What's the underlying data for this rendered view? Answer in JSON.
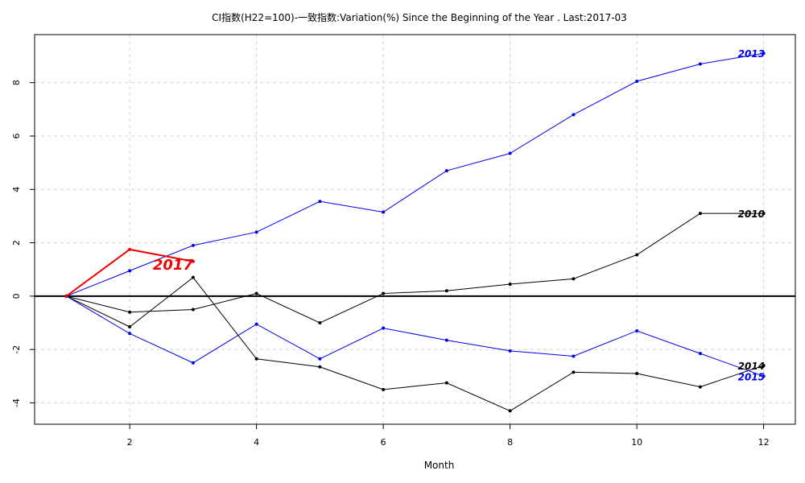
{
  "chart_data": {
    "type": "line",
    "title": "CI指数(H22=100)-一致指数:Variation(%) Since the Beginning of the Year . Last:2017-03",
    "xlabel": "Month",
    "ylabel": "",
    "xlim": [
      0.5,
      12.5
    ],
    "ylim": [
      -4.8,
      9.8
    ],
    "xticks": [
      2,
      4,
      6,
      8,
      10,
      12
    ],
    "yticks": [
      -4,
      -2,
      0,
      2,
      4,
      6,
      8
    ],
    "grid": true,
    "reference_line_y": 0,
    "series": [
      {
        "name": "2013",
        "color": "#0000ee",
        "label_color": "#0000ee",
        "x": [
          1,
          2,
          3,
          4,
          5,
          6,
          7,
          8,
          9,
          10,
          11,
          12
        ],
        "values": [
          0,
          0.95,
          1.9,
          2.4,
          3.55,
          3.15,
          4.7,
          5.35,
          6.8,
          8.05,
          8.7,
          9.1
        ]
      },
      {
        "name": "2010",
        "color": "#000000",
        "label_color": "#000000",
        "x": [
          1,
          2,
          3,
          4,
          5,
          6,
          7,
          8,
          9,
          10,
          11,
          12
        ],
        "values": [
          0,
          -0.6,
          -0.5,
          0.1,
          -1.0,
          0.1,
          0.2,
          0.45,
          0.65,
          1.55,
          3.1,
          3.1
        ]
      },
      {
        "name": "2014",
        "color": "#000000",
        "label_color": "#000000",
        "x": [
          1,
          2,
          3,
          4,
          5,
          6,
          7,
          8,
          9,
          10,
          11,
          12
        ],
        "values": [
          0,
          -1.15,
          0.7,
          -2.35,
          -2.65,
          -3.5,
          -3.25,
          -4.3,
          -2.85,
          -2.9,
          -3.4,
          -2.6
        ]
      },
      {
        "name": "2015",
        "color": "#0000ee",
        "label_color": "#0000ee",
        "x": [
          1,
          2,
          3,
          4,
          5,
          6,
          7,
          8,
          9,
          10,
          11,
          12
        ],
        "values": [
          0,
          -1.4,
          -2.5,
          -1.05,
          -2.35,
          -1.2,
          -1.65,
          -2.05,
          -2.25,
          -1.3,
          -2.15,
          -3.0
        ]
      },
      {
        "name": "2017",
        "color": "#ee0000",
        "label_color": "#ee0000",
        "big_label": true,
        "line_width": 2,
        "x": [
          1,
          2,
          3
        ],
        "values": [
          0,
          1.75,
          1.3
        ]
      }
    ]
  }
}
